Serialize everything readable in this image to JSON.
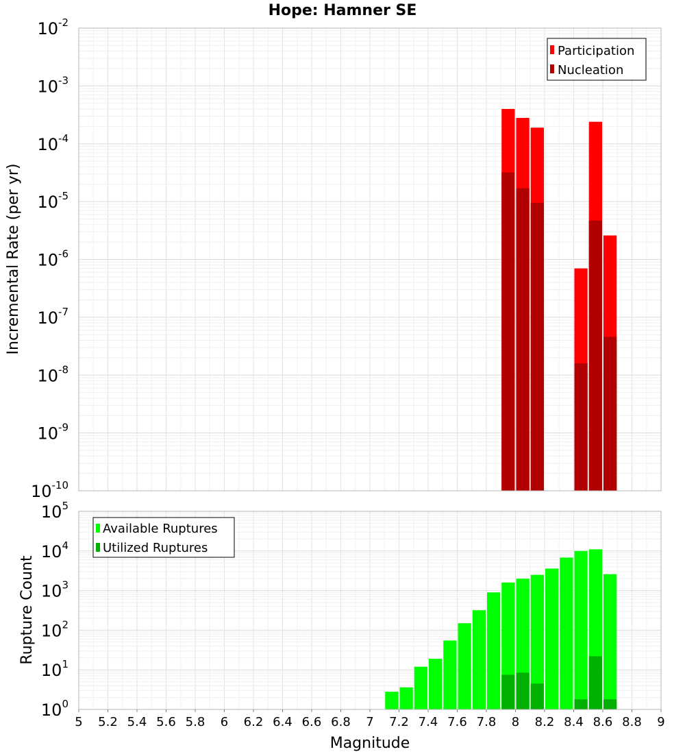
{
  "title": "Hope: Hamner SE",
  "chart_data": [
    {
      "type": "bar",
      "ylabel": "Incremental Rate (per yr)",
      "yscale": "log",
      "ylim_exp": [
        -10,
        -2
      ],
      "xlim": [
        5,
        9
      ],
      "grid": true,
      "legend_position": "top-right",
      "series": [
        {
          "name": "Participation",
          "color": "#ff0000",
          "x": [
            7.95,
            8.05,
            8.15,
            8.45,
            8.55,
            8.65
          ],
          "values": [
            0.0004,
            0.00028,
            0.00019,
            7e-07,
            0.00024,
            2.6e-06
          ]
        },
        {
          "name": "Nucleation",
          "color": "#b00000",
          "x": [
            7.95,
            8.05,
            8.15,
            8.45,
            8.55,
            8.65
          ],
          "values": [
            3.2e-05,
            1.7e-05,
            9.5e-06,
            1.6e-08,
            4.7e-06,
            4.6e-08
          ]
        }
      ]
    },
    {
      "type": "bar",
      "ylabel": "Rupture Count",
      "xlabel": "Magnitude",
      "yscale": "log",
      "ylim_exp": [
        0,
        5
      ],
      "xlim": [
        5,
        9
      ],
      "grid": true,
      "legend_position": "top-left",
      "xticks": [
        "5",
        "5.2",
        "5.4",
        "5.6",
        "5.8",
        "6",
        "6.2",
        "6.4",
        "6.6",
        "6.8",
        "7",
        "7.2",
        "7.4",
        "7.6",
        "7.8",
        "8",
        "8.2",
        "8.4",
        "8.6",
        "8.8",
        "9"
      ],
      "series": [
        {
          "name": "Available Ruptures",
          "color": "#00ff00",
          "x": [
            6.85,
            7.15,
            7.25,
            7.35,
            7.45,
            7.55,
            7.65,
            7.75,
            7.85,
            7.95,
            8.05,
            8.15,
            8.25,
            8.35,
            8.45,
            8.55,
            8.65
          ],
          "values": [
            1,
            2.8,
            3.6,
            12,
            19,
            55,
            150,
            320,
            900,
            1600,
            2000,
            2500,
            3600,
            6800,
            10000,
            11000,
            2600
          ]
        },
        {
          "name": "Utilized Ruptures",
          "color": "#00b000",
          "x": [
            7.95,
            8.05,
            8.15,
            8.45,
            8.55,
            8.65
          ],
          "values": [
            7.5,
            8.5,
            4.5,
            1.8,
            22,
            1.8
          ]
        }
      ]
    }
  ]
}
